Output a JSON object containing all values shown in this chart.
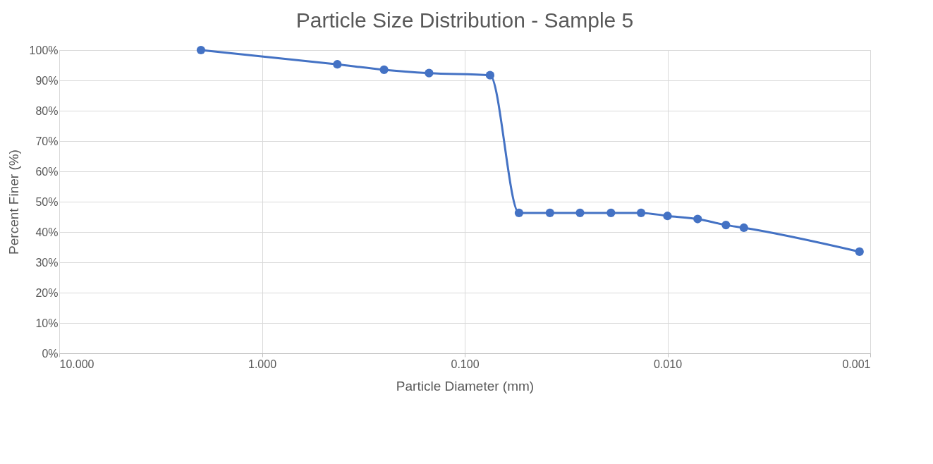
{
  "chart_data": {
    "type": "line",
    "title": "Particle Size Distribution - Sample 5",
    "xlabel": "Particle Diameter (mm)",
    "ylabel": "Percent Finer (%)",
    "x": [
      2.0,
      0.425,
      0.25,
      0.15,
      0.075,
      0.054,
      0.038,
      0.027,
      0.019,
      0.0135,
      0.01,
      0.0071,
      0.00515,
      0.0042,
      0.00113
    ],
    "series": [
      {
        "color": "#4472c4",
        "values": [
          100,
          95.3,
          93.5,
          92.4,
          91.7,
          46.3,
          46.3,
          46.3,
          46.3,
          46.3,
          45.3,
          44.3,
          42.3,
          41.4,
          33.5
        ]
      }
    ],
    "log": "x",
    "xlim": [
      10,
      0.001
    ],
    "xticks": [
      {
        "value": 10,
        "label": "10.000"
      },
      {
        "value": 1,
        "label": "1.000"
      },
      {
        "value": 0.1,
        "label": "0.100"
      },
      {
        "value": 0.01,
        "label": "0.010"
      },
      {
        "value": 0.001,
        "label": "0.001"
      }
    ],
    "ylim": [
      0,
      100
    ],
    "yticks": [
      {
        "value": 0,
        "label": "0%"
      },
      {
        "value": 10,
        "label": "10%"
      },
      {
        "value": 20,
        "label": "20%"
      },
      {
        "value": 30,
        "label": "30%"
      },
      {
        "value": 40,
        "label": "40%"
      },
      {
        "value": 50,
        "label": "50%"
      },
      {
        "value": 60,
        "label": "60%"
      },
      {
        "value": 70,
        "label": "70%"
      },
      {
        "value": 80,
        "label": "80%"
      },
      {
        "value": 90,
        "label": "90%"
      },
      {
        "value": 100,
        "label": "100%"
      }
    ],
    "grid": true,
    "marker": "circle",
    "line_style": "solid"
  }
}
